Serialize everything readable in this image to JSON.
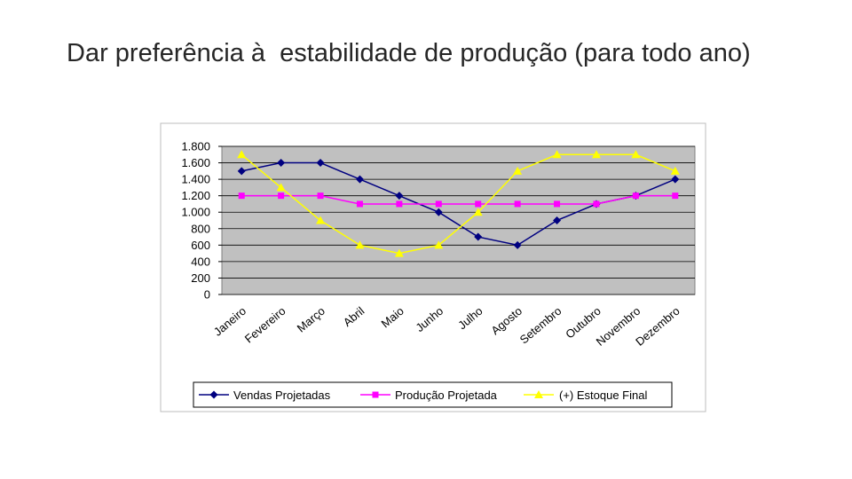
{
  "slide_title": "Dar preferência à  estabilidade de produção (para todo ano)",
  "chart_data": {
    "type": "line",
    "categories": [
      "Janeiro",
      "Fevereiro",
      "Março",
      "Abril",
      "Maio",
      "Junho",
      "Julho",
      "Agosto",
      "Setembro",
      "Outubro",
      "Novembro",
      "Dezembro"
    ],
    "series": [
      {
        "name": "Vendas Projetadas",
        "color": "#000080",
        "marker": "diamond",
        "values": [
          1500,
          1600,
          1600,
          1400,
          1200,
          1000,
          700,
          600,
          900,
          1100,
          1200,
          1400
        ]
      },
      {
        "name": "Produção Projetada",
        "color": "#ff00ff",
        "marker": "square",
        "values": [
          1200,
          1200,
          1200,
          1100,
          1100,
          1100,
          1100,
          1100,
          1100,
          1100,
          1200,
          1200
        ]
      },
      {
        "name": "(+) Estoque Final",
        "color": "#ffff00",
        "marker": "triangle",
        "values": [
          1700,
          1300,
          900,
          600,
          500,
          600,
          1000,
          1500,
          1700,
          1700,
          1700,
          1500
        ]
      }
    ],
    "ylim": [
      0,
      1800
    ],
    "yticks": [
      0,
      200,
      400,
      600,
      800,
      {
        "value": 1000,
        "label": "1.000"
      },
      {
        "value": 1200,
        "label": "1.200"
      },
      {
        "value": 1400,
        "label": "1.400"
      },
      {
        "value": 1600,
        "label": "1.600"
      },
      {
        "value": 1800,
        "label": "1.800"
      }
    ],
    "grid": true,
    "legend": "bottom"
  }
}
